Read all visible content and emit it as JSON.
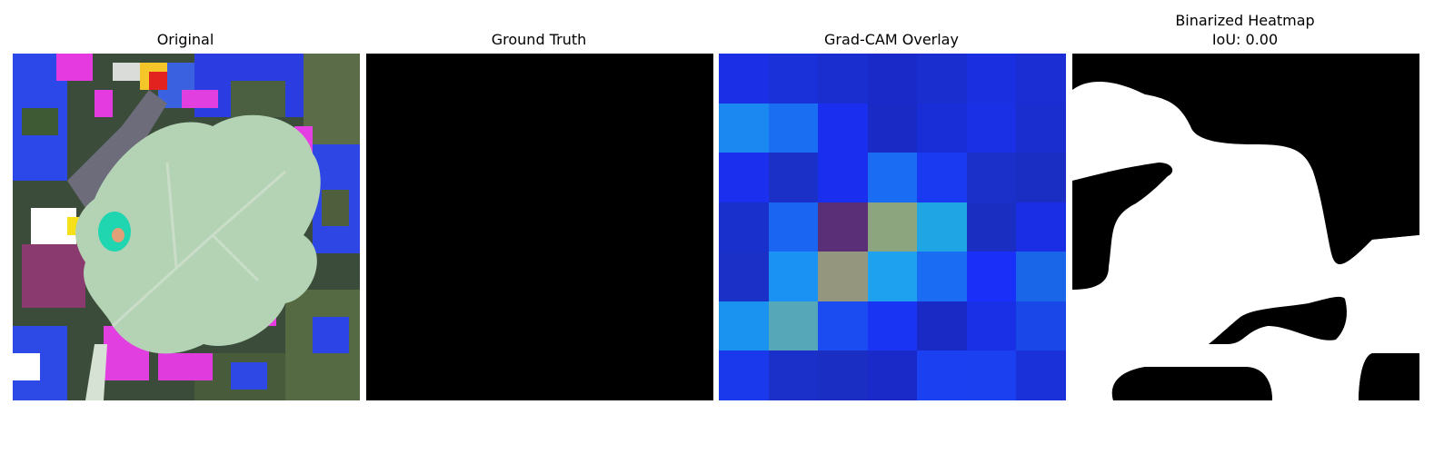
{
  "panels": [
    {
      "title": "Original"
    },
    {
      "title": "Ground Truth"
    },
    {
      "title": "Grad-CAM Overlay"
    },
    {
      "title_line1": "Binarized Heatmap",
      "title_line2": "IoU: 0.00"
    }
  ],
  "gradcam_grid": [
    [
      "#1a2fe6",
      "#1a30d8",
      "#1a2ed0",
      "#1a2ac8",
      "#1a2ecf",
      "#1a2fe0",
      "#1a2ed4"
    ],
    [
      "#1a88f0",
      "#1a6ef2",
      "#1a2ef0",
      "#1a2ac4",
      "#1a2ed8",
      "#1a30e4",
      "#1a2ed0"
    ],
    [
      "#1a30ee",
      "#1a30c6",
      "#1a2ef0",
      "#1a6cf2",
      "#1a3af2",
      "#1a30c8",
      "#1a2ec4"
    ],
    [
      "#1a30cc",
      "#1a66f2",
      "#5a2f78",
      "#8da57f",
      "#1fa4e4",
      "#1a2ec2",
      "#1a2ee6"
    ],
    [
      "#1a30c6",
      "#1a92f4",
      "#94967e",
      "#1ea2f0",
      "#1a6cf2",
      "#1a30f8",
      "#1a66e8"
    ],
    [
      "#1a92f0",
      "#56a8b8",
      "#1a4cf2",
      "#1a34f4",
      "#1a2ac4",
      "#1a30e6",
      "#1a48e8"
    ],
    [
      "#1a38ec",
      "#1a30c8",
      "#1a2ec4",
      "#1a2ac8",
      "#1a40f2",
      "#1a40f0",
      "#1a30d8"
    ]
  ]
}
